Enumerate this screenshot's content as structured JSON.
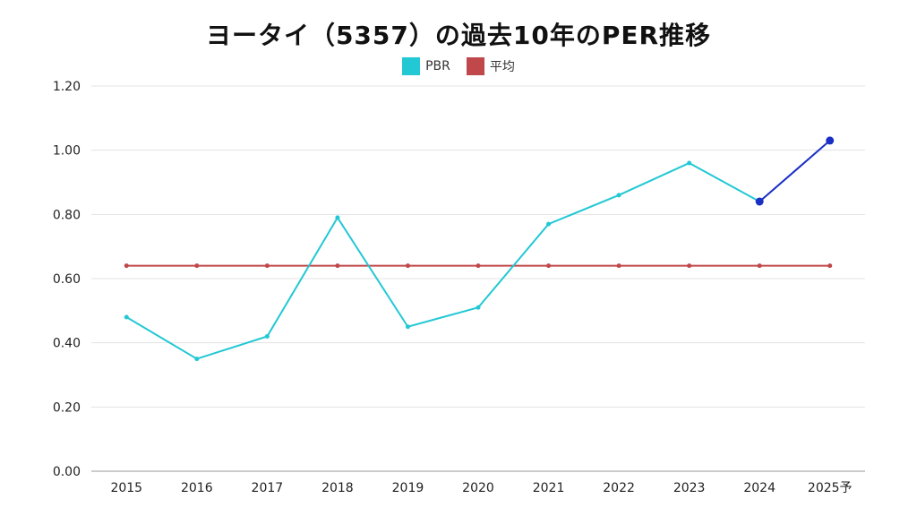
{
  "chart_data": {
    "type": "line",
    "title": "ヨータイ（5357）の過去10年のPER推移",
    "categories": [
      "2015",
      "2016",
      "2017",
      "2018",
      "2019",
      "2020",
      "2021",
      "2022",
      "2023",
      "2024",
      "2025予"
    ],
    "series": [
      {
        "name": "PBR",
        "color": "#22c8d4",
        "values": [
          0.48,
          0.35,
          0.42,
          0.79,
          0.45,
          0.51,
          0.77,
          0.86,
          0.96,
          0.84,
          1.03
        ]
      },
      {
        "name": "平均",
        "color": "#c0474a",
        "values": [
          0.64,
          0.64,
          0.64,
          0.64,
          0.64,
          0.64,
          0.64,
          0.64,
          0.64,
          0.64,
          0.64
        ]
      }
    ],
    "forecast_segment_color": "#1a2fc4",
    "y_ticks": [
      "0.00",
      "0.20",
      "0.40",
      "0.60",
      "0.80",
      "1.00",
      "1.20"
    ],
    "ylim": [
      0,
      1.2
    ],
    "grid": true,
    "legend_position": "top-center"
  }
}
